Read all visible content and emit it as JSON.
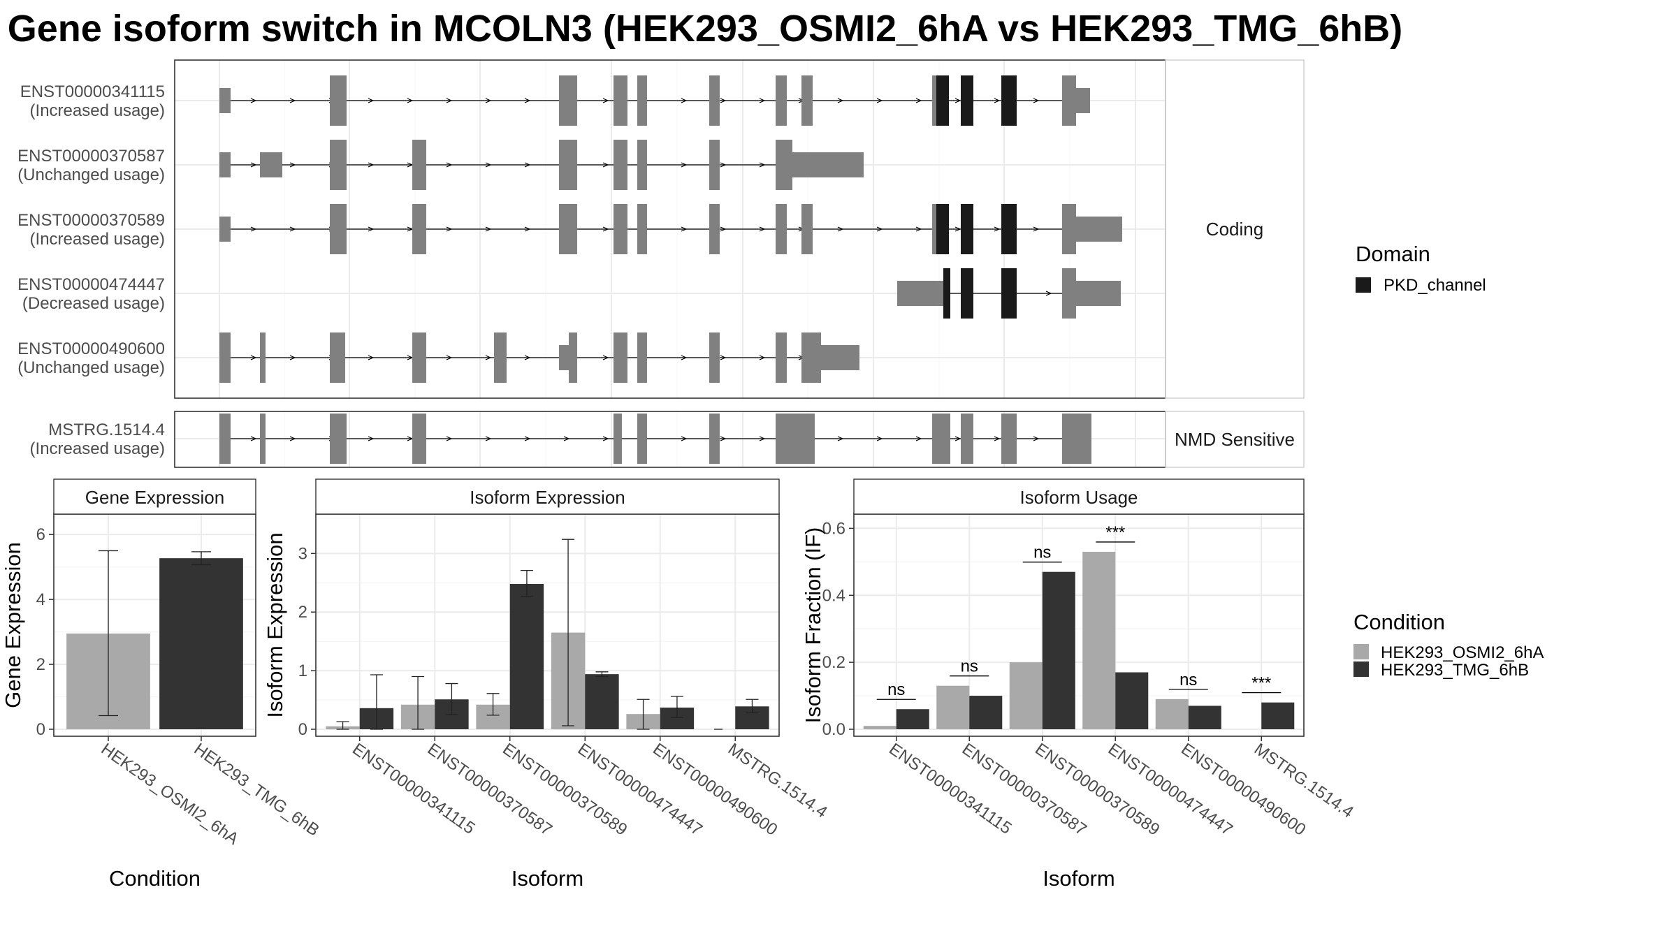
{
  "title": "Gene isoform switch in MCOLN3 (HEK293_OSMI2_6hA vs HEK293_TMG_6hB)",
  "colors": {
    "exon": "#808080",
    "domain": "#1a1a1a",
    "cond_a": "#a9a9a9",
    "cond_b": "#333333",
    "grid": "#ebebeb",
    "border": "#333333"
  },
  "transcript_panels": [
    {
      "label": "Coding",
      "transcripts": [
        {
          "id": "ENST00000341115",
          "usage": "(Increased usage)"
        },
        {
          "id": "ENST00000370587",
          "usage": "(Unchanged usage)"
        },
        {
          "id": "ENST00000370589",
          "usage": "(Increased usage)"
        },
        {
          "id": "ENST00000474447",
          "usage": "(Decreased usage)"
        },
        {
          "id": "ENST00000490600",
          "usage": "(Unchanged usage)"
        }
      ]
    },
    {
      "label": "NMD Sensitive",
      "transcripts": [
        {
          "id": "MSTRG.1514.4",
          "usage": "(Increased usage)"
        }
      ]
    }
  ],
  "legend_domain": {
    "title": "Domain",
    "items": [
      {
        "label": "PKD_channel",
        "color": "#1a1a1a"
      }
    ]
  },
  "legend_condition": {
    "title": "Condition",
    "items": [
      {
        "label": "HEK293_OSMI2_6hA",
        "color": "#a9a9a9"
      },
      {
        "label": "HEK293_TMG_6hB",
        "color": "#333333"
      }
    ]
  },
  "chart_data": [
    {
      "type": "bar",
      "title": "Gene Expression",
      "xlabel": "Condition",
      "ylabel": "Gene Expression",
      "ylim": [
        0,
        6.5
      ],
      "yticks": [
        0,
        2,
        4,
        6
      ],
      "categories": [
        "HEK293_OSMI2_6hA",
        "HEK293_TMG_6hB"
      ],
      "values": [
        2.95,
        5.27
      ],
      "error_low": [
        0.42,
        5.07
      ],
      "error_high": [
        5.5,
        5.47
      ]
    },
    {
      "type": "bar",
      "title": "Isoform Expression",
      "xlabel": "Isoform",
      "ylabel": "Isoform Expression",
      "ylim": [
        0,
        3.6
      ],
      "yticks": [
        0,
        1,
        2,
        3
      ],
      "categories": [
        "ENST00000341115",
        "ENST00000370587",
        "ENST00000370589",
        "ENST00000474447",
        "ENST00000490600",
        "MSTRG.1514.4"
      ],
      "series": [
        {
          "name": "HEK293_OSMI2_6hA",
          "values": [
            0.05,
            0.42,
            0.42,
            1.65,
            0.26,
            0.0
          ],
          "error_low": [
            0.0,
            0.0,
            0.24,
            0.06,
            0.0,
            0.0
          ],
          "error_high": [
            0.13,
            0.9,
            0.61,
            3.24,
            0.51,
            0.0
          ]
        },
        {
          "name": "HEK293_TMG_6hB",
          "values": [
            0.36,
            0.51,
            2.48,
            0.94,
            0.37,
            0.39
          ],
          "error_low": [
            0.0,
            0.25,
            2.27,
            0.9,
            0.2,
            0.28
          ],
          "error_high": [
            0.93,
            0.78,
            2.71,
            0.98,
            0.56,
            0.51
          ]
        }
      ]
    },
    {
      "type": "bar",
      "title": "Isoform Usage",
      "xlabel": "Isoform",
      "ylabel": "Isoform Fraction (IF)",
      "ylim": [
        0,
        0.63
      ],
      "yticks": [
        0.0,
        0.2,
        0.4,
        0.6
      ],
      "ytick_labels": [
        "0.0",
        "0.2",
        "0.4",
        "0.6"
      ],
      "categories": [
        "ENST00000341115",
        "ENST00000370587",
        "ENST00000370589",
        "ENST00000474447",
        "ENST00000490600",
        "MSTRG.1514.4"
      ],
      "series": [
        {
          "name": "HEK293_OSMI2_6hA",
          "values": [
            0.01,
            0.13,
            0.2,
            0.53,
            0.09,
            0.0
          ]
        },
        {
          "name": "HEK293_TMG_6hB",
          "values": [
            0.06,
            0.1,
            0.47,
            0.17,
            0.07,
            0.08
          ]
        }
      ],
      "significance": [
        "ns",
        "ns",
        "ns",
        "***",
        "ns",
        "***"
      ]
    }
  ]
}
